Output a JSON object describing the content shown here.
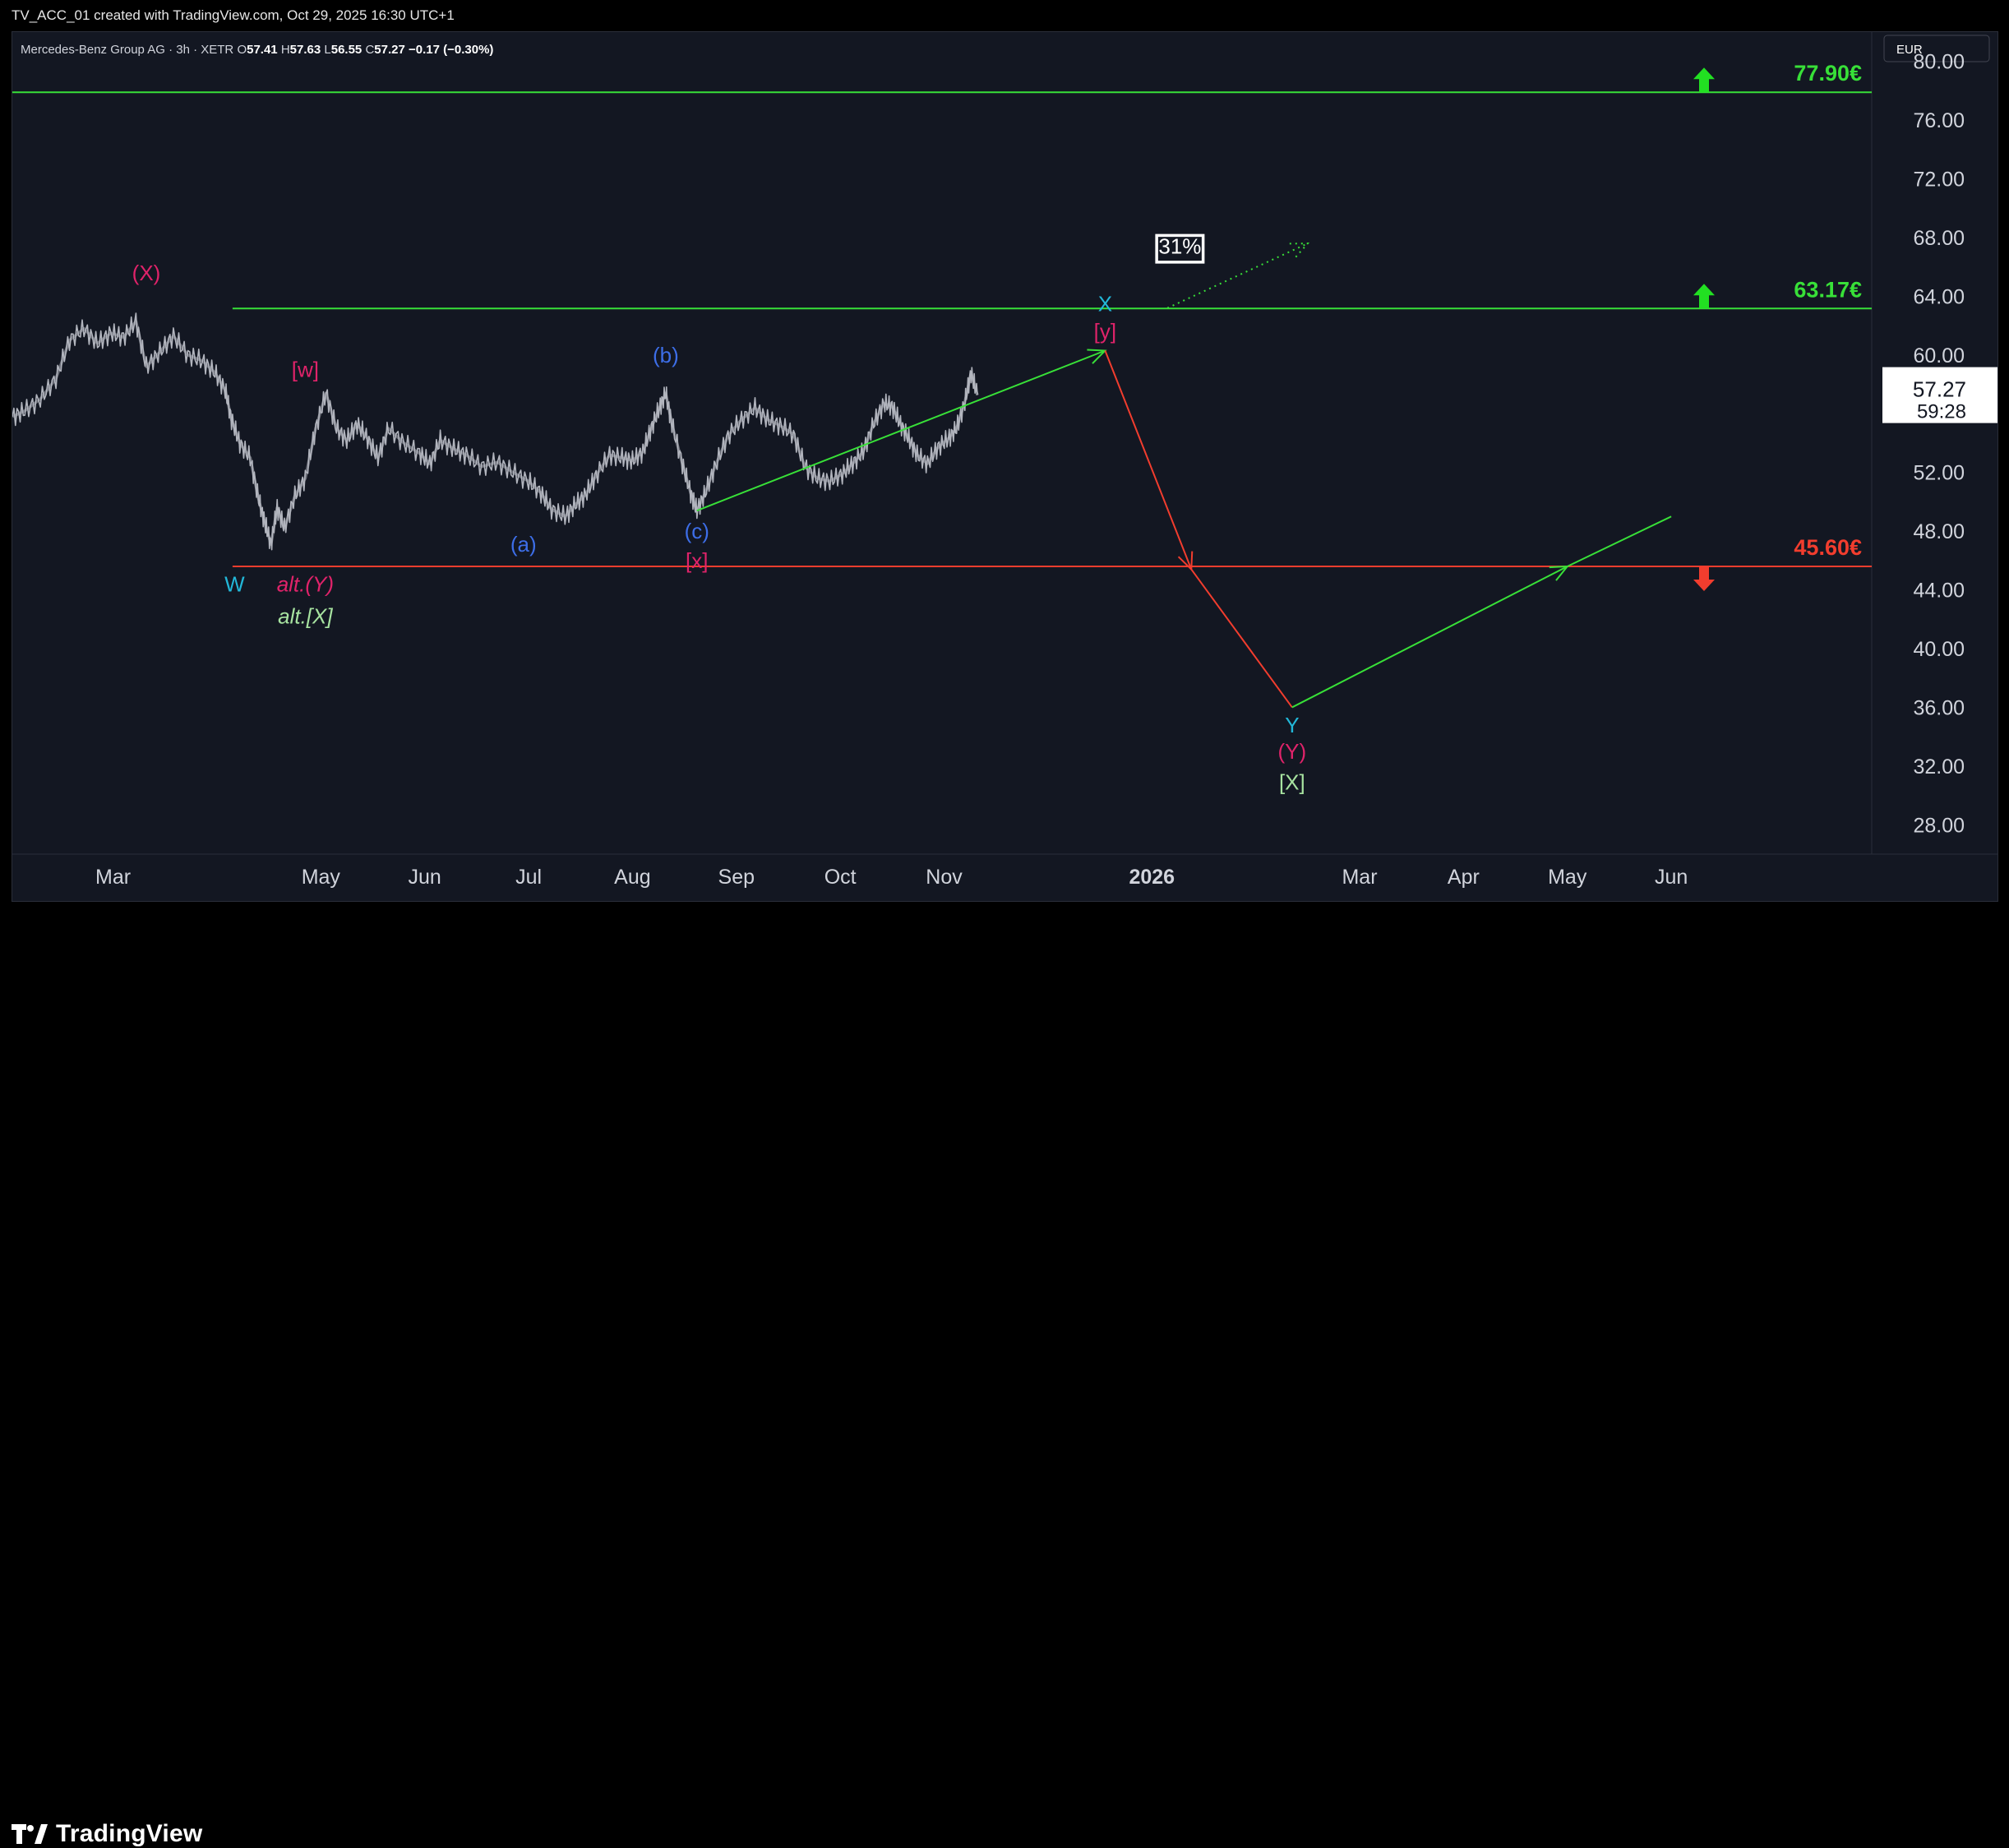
{
  "header": {
    "text": "TV_ACC_01 created with TradingView.com, Oct 29, 2025 16:30 UTC+1"
  },
  "footer": {
    "brand": "TradingView"
  },
  "colors": {
    "background": "#131722",
    "price": "#b2b5be",
    "green": "#38e038",
    "red": "#f23d2e",
    "magenta": "#e0236a",
    "cyan": "#22b7d8",
    "blue": "#3d6ee8",
    "lightgreen": "#a7e3a0",
    "label_white": "#ffffff"
  },
  "icons": {
    "up": "arrow-up-icon",
    "down": "arrow-down-icon"
  },
  "chart_data": {
    "type": "line",
    "symbol": {
      "name": "Mercedes-Benz Group AG · 3h · XETR",
      "o_label": "O",
      "o": "57.41",
      "h_label": "H",
      "h": "57.63",
      "l_label": "L",
      "l": "56.55",
      "c_label": "C",
      "c": "57.27",
      "change": "−0.17 (−0.30%)"
    },
    "currency": "EUR",
    "y_axis": {
      "min": 26,
      "max": 82,
      "ticks": [
        "80.00",
        "76.00",
        "72.00",
        "68.00",
        "64.00",
        "60.00",
        "56.00",
        "52.00",
        "48.00",
        "44.00",
        "40.00",
        "36.00",
        "32.00",
        "28.00"
      ]
    },
    "x_axis": {
      "ticks": [
        {
          "label": "Mar",
          "t": 0.0
        },
        {
          "label": "May",
          "t": 2.0
        },
        {
          "label": "Jun",
          "t": 3.0
        },
        {
          "label": "Jul",
          "t": 4.0
        },
        {
          "label": "Aug",
          "t": 5.0
        },
        {
          "label": "Sep",
          "t": 6.0
        },
        {
          "label": "Oct",
          "t": 7.0
        },
        {
          "label": "Nov",
          "t": 8.0
        },
        {
          "label": "2026",
          "t": 10.0
        },
        {
          "label": "Mar",
          "t": 12.0
        },
        {
          "label": "Apr",
          "t": 13.0
        },
        {
          "label": "May",
          "t": 14.0
        },
        {
          "label": "Jun",
          "t": 15.0
        }
      ],
      "t_range": [
        -0.97,
        16.93
      ]
    },
    "last_price": {
      "value": "57.27",
      "countdown": "59:28",
      "y": 57.27
    },
    "price_series": {
      "name": "",
      "points": [
        [
          -0.97,
          55.8
        ],
        [
          -0.85,
          56.2
        ],
        [
          -0.7,
          57.0
        ],
        [
          -0.55,
          58.4
        ],
        [
          -0.42,
          61.0
        ],
        [
          -0.28,
          61.8
        ],
        [
          -0.15,
          60.8
        ],
        [
          -0.02,
          61.5
        ],
        [
          0.1,
          61.2
        ],
        [
          0.22,
          62.3
        ],
        [
          0.32,
          59.2
        ],
        [
          0.45,
          60.2
        ],
        [
          0.58,
          61.3
        ],
        [
          0.72,
          60.0
        ],
        [
          0.86,
          59.6
        ],
        [
          0.98,
          58.8
        ],
        [
          1.08,
          57.6
        ],
        [
          1.14,
          55.6
        ],
        [
          1.22,
          54.0
        ],
        [
          1.32,
          53.0
        ],
        [
          1.4,
          50.2
        ],
        [
          1.46,
          48.6
        ],
        [
          1.52,
          47.1
        ],
        [
          1.58,
          49.6
        ],
        [
          1.65,
          48.2
        ],
        [
          1.75,
          50.4
        ],
        [
          1.85,
          51.6
        ],
        [
          1.95,
          55.0
        ],
        [
          2.05,
          57.4
        ],
        [
          2.15,
          55.0
        ],
        [
          2.25,
          54.2
        ],
        [
          2.35,
          55.3
        ],
        [
          2.45,
          54.3
        ],
        [
          2.55,
          53.0
        ],
        [
          2.65,
          55.0
        ],
        [
          2.8,
          54.0
        ],
        [
          2.95,
          53.3
        ],
        [
          3.05,
          52.6
        ],
        [
          3.15,
          54.2
        ],
        [
          3.28,
          53.6
        ],
        [
          3.4,
          53.2
        ],
        [
          3.55,
          52.4
        ],
        [
          3.7,
          52.7
        ],
        [
          3.85,
          52.0
        ],
        [
          4.0,
          51.4
        ],
        [
          4.12,
          50.6
        ],
        [
          4.22,
          49.5
        ],
        [
          4.35,
          49.0
        ],
        [
          4.45,
          49.8
        ],
        [
          4.55,
          50.5
        ],
        [
          4.65,
          51.8
        ],
        [
          4.78,
          53.2
        ],
        [
          4.9,
          53.0
        ],
        [
          5.0,
          52.8
        ],
        [
          5.1,
          53.4
        ],
        [
          5.18,
          55.0
        ],
        [
          5.26,
          56.4
        ],
        [
          5.32,
          57.4
        ],
        [
          5.38,
          55.3
        ],
        [
          5.48,
          52.6
        ],
        [
          5.56,
          50.6
        ],
        [
          5.62,
          49.4
        ],
        [
          5.7,
          50.6
        ],
        [
          5.8,
          52.5
        ],
        [
          5.92,
          54.5
        ],
        [
          6.05,
          55.6
        ],
        [
          6.18,
          56.4
        ],
        [
          6.3,
          55.6
        ],
        [
          6.42,
          55.2
        ],
        [
          6.55,
          54.6
        ],
        [
          6.66,
          52.4
        ],
        [
          6.78,
          51.6
        ],
        [
          6.9,
          51.4
        ],
        [
          7.02,
          51.9
        ],
        [
          7.12,
          52.6
        ],
        [
          7.22,
          53.4
        ],
        [
          7.32,
          55.3
        ],
        [
          7.42,
          56.7
        ],
        [
          7.5,
          56.5
        ],
        [
          7.58,
          55.3
        ],
        [
          7.66,
          54.3
        ],
        [
          7.74,
          53.2
        ],
        [
          7.84,
          52.6
        ],
        [
          7.94,
          53.7
        ],
        [
          8.04,
          54.3
        ],
        [
          8.12,
          55.0
        ],
        [
          8.2,
          56.8
        ],
        [
          8.26,
          58.8
        ],
        [
          8.32,
          57.27
        ]
      ]
    },
    "levels": [
      {
        "value": 77.9,
        "label": "77.90€",
        "color": "green",
        "arrow": "up"
      },
      {
        "value": 63.17,
        "label": "63.17€",
        "color": "green",
        "arrow": "up"
      },
      {
        "value": 45.6,
        "label": "45.60€",
        "color": "red",
        "arrow": "down"
      }
    ],
    "projections": [
      {
        "color": "green",
        "style": "solid",
        "from": [
          5.62,
          49.4
        ],
        "to": [
          9.55,
          60.3
        ],
        "arrow": true
      },
      {
        "color": "red",
        "style": "solid",
        "from": [
          9.55,
          60.3
        ],
        "to": [
          10.38,
          45.4
        ],
        "arrow": true
      },
      {
        "color": "red",
        "style": "solid",
        "from": [
          10.38,
          45.4
        ],
        "to": [
          11.35,
          36.0
        ],
        "arrow": false
      },
      {
        "color": "green",
        "style": "solid",
        "from": [
          11.35,
          36.0
        ],
        "to": [
          14.0,
          45.6
        ],
        "arrow": true
      },
      {
        "color": "green",
        "style": "solid",
        "from": [
          14.0,
          45.6
        ],
        "to": [
          15.0,
          49.0
        ],
        "arrow": false
      },
      {
        "color": "green",
        "style": "dotted",
        "from": [
          10.15,
          63.2
        ],
        "to": [
          11.5,
          67.6
        ],
        "arrow": true
      }
    ],
    "annotations": [
      {
        "text": "(X)",
        "t": 0.32,
        "y": 65.1,
        "color": "magenta"
      },
      {
        "text": "[w]",
        "t": 1.85,
        "y": 58.5,
        "color": "magenta"
      },
      {
        "text": "W",
        "t": 1.17,
        "y": 43.9,
        "color": "cyan"
      },
      {
        "text": "alt.(Y)",
        "t": 1.85,
        "y": 43.9,
        "color": "magenta",
        "italic": true
      },
      {
        "text": "alt.[X]",
        "t": 1.85,
        "y": 41.7,
        "color": "lightgreen",
        "italic": true
      },
      {
        "text": "(a)",
        "t": 3.95,
        "y": 46.6,
        "color": "blue"
      },
      {
        "text": "(b)",
        "t": 5.32,
        "y": 59.5,
        "color": "blue"
      },
      {
        "text": "(c)",
        "t": 5.62,
        "y": 47.5,
        "color": "blue"
      },
      {
        "text": "[x]",
        "t": 5.62,
        "y": 45.5,
        "color": "magenta"
      },
      {
        "text": "X",
        "t": 9.55,
        "y": 63.0,
        "color": "cyan"
      },
      {
        "text": "[y]",
        "t": 9.55,
        "y": 61.1,
        "color": "magenta"
      },
      {
        "text": "31%",
        "t": 10.27,
        "y": 66.9,
        "color": "label_white",
        "boxed": true
      },
      {
        "text": "Y",
        "t": 11.35,
        "y": 34.3,
        "color": "cyan"
      },
      {
        "text": "(Y)",
        "t": 11.35,
        "y": 32.5,
        "color": "magenta"
      },
      {
        "text": "[X]",
        "t": 11.35,
        "y": 30.4,
        "color": "lightgreen"
      }
    ]
  }
}
